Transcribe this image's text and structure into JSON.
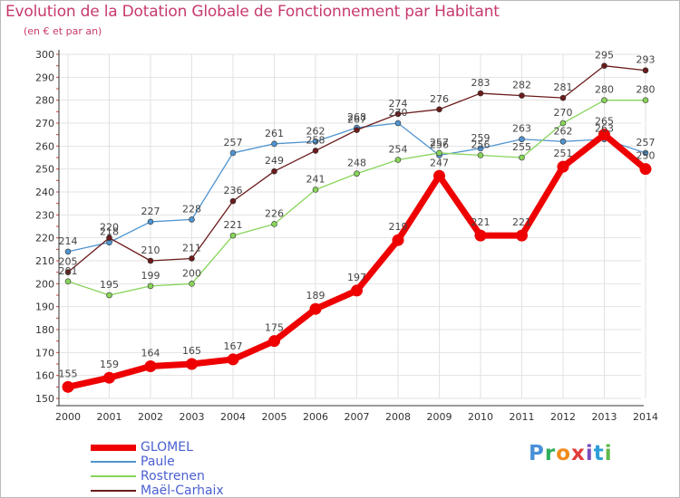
{
  "header": {
    "title": "Evolution de la Dotation Globale de Fonctionnement par Habitant",
    "subtitle": "(en € et par an)"
  },
  "logo": {
    "text": "Proxiti",
    "colors": [
      "#4a90d9",
      "#2fae5c",
      "#f08a1d",
      "#e23b3b",
      "#7a4fbf",
      "#2c9fd6",
      "#5fb84a"
    ]
  },
  "chart_data": {
    "type": "line",
    "title": "Evolution de la Dotation Globale de Fonctionnement par Habitant",
    "subtitle": "(en € et par an)",
    "xlabel": "",
    "ylabel": "",
    "x": [
      "2000",
      "2001",
      "2002",
      "2003",
      "2004",
      "2005",
      "2006",
      "2007",
      "2008",
      "2009",
      "2010",
      "2011",
      "2012",
      "2013",
      "2014"
    ],
    "ylim": [
      150,
      300
    ],
    "yticks": [
      150,
      160,
      170,
      180,
      190,
      200,
      210,
      220,
      230,
      240,
      250,
      260,
      270,
      280,
      290,
      300
    ],
    "grid": true,
    "legend_position": "bottom-left",
    "series": [
      {
        "name": "GLOMEL",
        "color": "#ee0000",
        "values": [
          155,
          159,
          164,
          165,
          167,
          175,
          189,
          197,
          219,
          247,
          221,
          221,
          251,
          265,
          250
        ]
      },
      {
        "name": "Paule",
        "color": "#4f94cf",
        "values": [
          214,
          218,
          227,
          228,
          257,
          261,
          262,
          268,
          270,
          256,
          259,
          263,
          262,
          263,
          257
        ]
      },
      {
        "name": "Rostrenen",
        "color": "#88d45a",
        "values": [
          201,
          195,
          199,
          200,
          221,
          226,
          241,
          248,
          254,
          257,
          256,
          255,
          270,
          280,
          280
        ]
      },
      {
        "name": "Maël-Carhaix",
        "color": "#6b1b1b",
        "values": [
          205,
          220,
          210,
          211,
          236,
          249,
          258,
          267,
          274,
          276,
          283,
          282,
          281,
          295,
          293
        ]
      }
    ]
  }
}
